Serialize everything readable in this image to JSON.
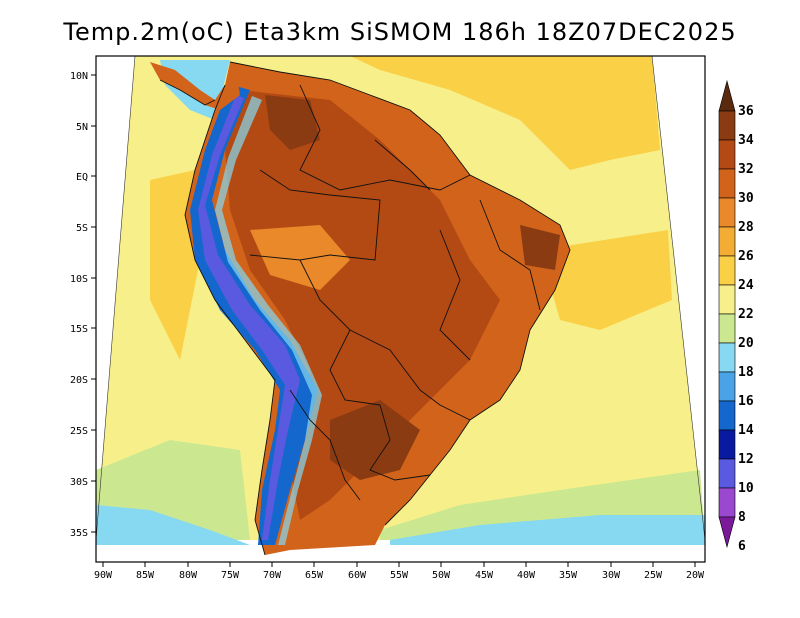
{
  "title": "Temp.2m(oC) Eta3km SiSMOM 186h 18Z07DEC2025",
  "lat_labels": [
    "10N",
    "5N",
    "EQ",
    "5S",
    "10S",
    "15S",
    "20S",
    "25S",
    "30S",
    "35S"
  ],
  "lon_labels": [
    "90W",
    "85W",
    "80W",
    "75W",
    "70W",
    "65W",
    "60W",
    "55W",
    "50W",
    "45W",
    "40W",
    "35W",
    "30W",
    "25W",
    "20W"
  ],
  "colorbar": {
    "labels": [
      "36",
      "34",
      "32",
      "30",
      "28",
      "26",
      "24",
      "22",
      "20",
      "18",
      "16",
      "14",
      "12",
      "10",
      "8",
      "6"
    ],
    "colors_top_to_bottom": [
      "#5a2a0e",
      "#8a3b12",
      "#b34a14",
      "#d2631b",
      "#e9892a",
      "#f3ad34",
      "#fad046",
      "#f7f08a",
      "#cbe890",
      "#86d9f0",
      "#4aa3e6",
      "#1468cd",
      "#0a1aa0",
      "#5a5ae0",
      "#9a48d0",
      "#7a1a9a"
    ]
  },
  "colors": {
    "ocean_warm": "#fad046",
    "ocean_mild": "#f7f08a",
    "ocean_cool": "#cbe890",
    "ocean_cold": "#86d9f0",
    "land_hot": "#b34a14",
    "land_very_hot": "#8a3b12",
    "land_warm": "#d2631b",
    "andes_cold": "#1468cd",
    "andes_very_cold": "#5a5ae0"
  }
}
